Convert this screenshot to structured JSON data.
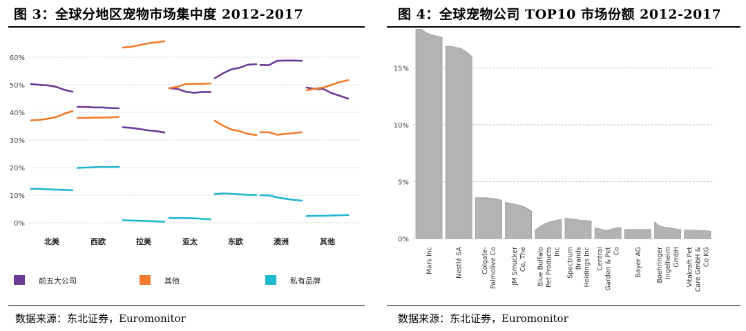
{
  "left": {
    "title": "图 3：全球分地区宠物市场集中度 2012-2017",
    "source": "数据来源：东北证券，Euromonitor"
  },
  "right": {
    "title": "图 4：全球宠物公司 TOP10 市场份额 2012-2017",
    "source": "数据来源：东北证券，Euromonitor"
  },
  "chart_data": [
    {
      "type": "line",
      "title": "全球分地区宠物市场集中度 2012-2017",
      "y_ticks": [
        "0%",
        "10%",
        "20%",
        "30%",
        "40%",
        "50%",
        "60%"
      ],
      "ylim": [
        0,
        65
      ],
      "categories": [
        "北美",
        "西欧",
        "拉美",
        "亚太",
        "东欧",
        "澳洲",
        "其他"
      ],
      "legend_position": "bottom",
      "series": [
        {
          "name": "前五大公司",
          "color": "#6b3a96",
          "values": [
            [
              50.3,
              50.0,
              49.8,
              49.3,
              48.2,
              47.5
            ],
            [
              42.0,
              42.0,
              41.8,
              41.8,
              41.6,
              41.5
            ],
            [
              34.6,
              34.4,
              34.0,
              33.5,
              33.2,
              32.7
            ],
            [
              48.8,
              48.5,
              47.5,
              47.1,
              47.4,
              47.4
            ],
            [
              52.4,
              54.2,
              55.6,
              56.2,
              57.3,
              57.5
            ],
            [
              57.2,
              57.1,
              58.7,
              58.8,
              58.8,
              58.7
            ],
            [
              49.0,
              48.5,
              48.5,
              47.0,
              46.0,
              45.0
            ]
          ]
        },
        {
          "name": "其他",
          "color": "#f07c2c",
          "values": [
            [
              37.1,
              37.3,
              37.7,
              38.3,
              39.5,
              40.5
            ],
            [
              38.0,
              38.0,
              38.1,
              38.1,
              38.2,
              38.4
            ],
            [
              63.5,
              63.8,
              64.4,
              65.0,
              65.4,
              65.8
            ],
            [
              48.8,
              49.3,
              50.3,
              50.4,
              50.4,
              50.5
            ],
            [
              37.0,
              35.2,
              33.8,
              33.2,
              32.2,
              31.8
            ],
            [
              32.8,
              32.8,
              31.9,
              32.2,
              32.5,
              32.8
            ],
            [
              48.0,
              48.6,
              49.0,
              50.0,
              51.0,
              51.7
            ]
          ]
        },
        {
          "name": "私有品牌",
          "color": "#1fb6d0",
          "values": [
            [
              12.3,
              12.3,
              12.1,
              12.0,
              11.9,
              11.8
            ],
            [
              19.9,
              20.0,
              20.1,
              20.2,
              20.2,
              20.2
            ],
            [
              0.9,
              0.8,
              0.7,
              0.6,
              0.5,
              0.4
            ],
            [
              1.7,
              1.7,
              1.7,
              1.6,
              1.4,
              1.2
            ],
            [
              10.4,
              10.6,
              10.5,
              10.3,
              10.1,
              10.1
            ],
            [
              10.0,
              9.9,
              9.2,
              8.7,
              8.3,
              8.0
            ],
            [
              2.4,
              2.5,
              2.5,
              2.6,
              2.7,
              2.8
            ]
          ]
        }
      ]
    },
    {
      "type": "area",
      "title": "全球宠物公司 TOP10 市场份额 2012-2017",
      "y_ticks": [
        "0%",
        "5%",
        "10%",
        "15%"
      ],
      "ylim": [
        0,
        18.5
      ],
      "fill_color": "#b3b3b3",
      "categories": [
        "Mars Inc",
        "Nestlé SA",
        "Colgate-Palmolive Co",
        "JM Smucker Co, The",
        "Blue Buffalo Pet Products Inc",
        "Spectrum Brands Holdings Inc",
        "Central Garden & Pet Co",
        "Bayer AG",
        "Boehringer Ingelheim GmbH",
        "Vitakraft Pet Care GmbH & Co KG"
      ],
      "category_lines": [
        [
          "Mars Inc"
        ],
        [
          "Nestlé SA"
        ],
        [
          "Colgate-",
          "Palmolive Co"
        ],
        [
          "JM Smucker",
          "Co, The"
        ],
        [
          "Blue Buffalo",
          "Pet Products",
          "Inc"
        ],
        [
          "Spectrum",
          "Brands",
          "Holdings Inc"
        ],
        [
          "Central",
          "Garden & Pet",
          "Co"
        ],
        [
          "Bayer AG"
        ],
        [
          "Boehringer",
          "Ingelheim",
          "GmbH"
        ],
        [
          "Vitakraft Pet",
          "Care GmbH &",
          "Co KG"
        ]
      ],
      "values": [
        [
          18.4,
          18.4,
          18.1,
          17.9,
          17.8,
          17.7
        ],
        [
          16.9,
          16.9,
          16.8,
          16.7,
          16.4,
          16.0
        ],
        [
          3.6,
          3.6,
          3.6,
          3.55,
          3.5,
          3.35
        ],
        [
          3.2,
          3.1,
          3.0,
          2.9,
          2.7,
          2.4
        ],
        [
          0.75,
          1.1,
          1.35,
          1.5,
          1.6,
          1.7
        ],
        [
          1.8,
          1.75,
          1.7,
          1.6,
          1.6,
          1.55
        ],
        [
          0.95,
          0.85,
          0.75,
          0.8,
          0.95,
          0.95
        ],
        [
          0.8,
          0.8,
          0.8,
          0.8,
          0.8,
          0.8
        ],
        [
          1.45,
          1.1,
          1.0,
          0.95,
          0.85,
          0.8
        ],
        [
          0.75,
          0.75,
          0.75,
          0.7,
          0.7,
          0.65
        ]
      ]
    }
  ]
}
